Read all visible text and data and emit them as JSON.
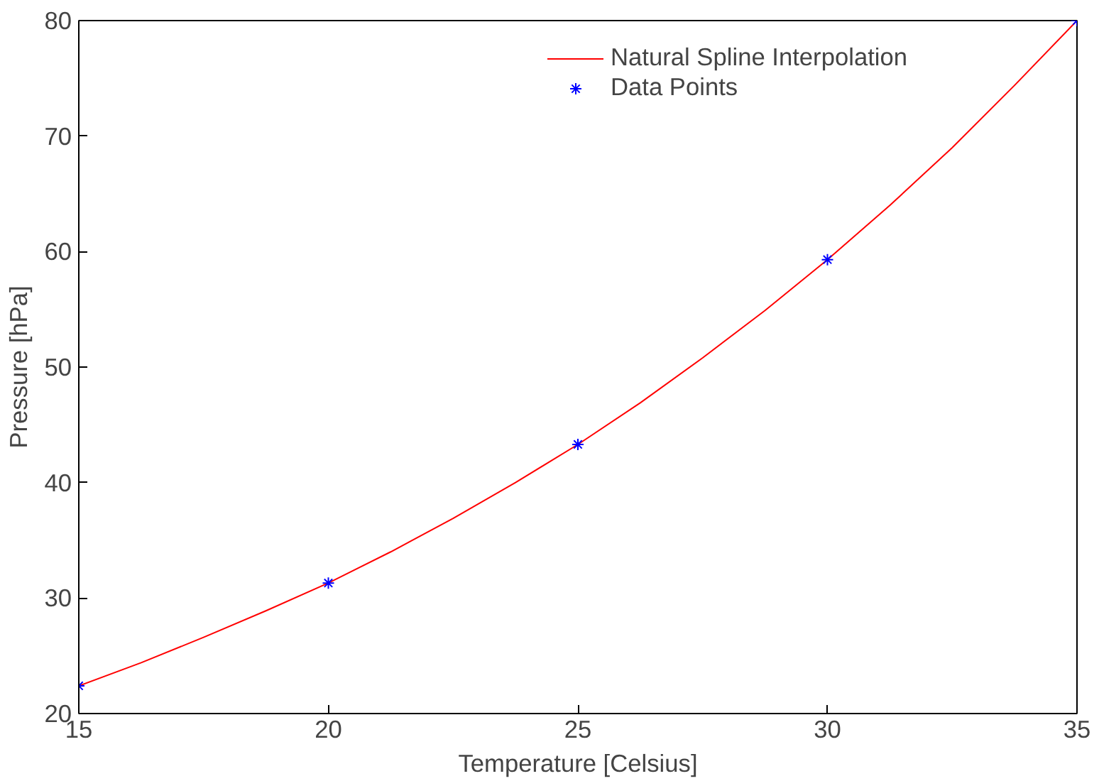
{
  "chart_data": {
    "type": "line",
    "xlabel": "Temperature [Celsius]",
    "ylabel": "Pressure [hPa]",
    "xlim": [
      15,
      35
    ],
    "ylim": [
      20,
      80
    ],
    "xticks": [
      15,
      20,
      25,
      30,
      35
    ],
    "yticks": [
      20,
      30,
      40,
      50,
      60,
      70,
      80
    ],
    "grid": false,
    "legend": "top right",
    "series": [
      {
        "name": "Natural Spline Interpolation",
        "color": "#ff0000",
        "marker": "none",
        "x": [
          15,
          16.25,
          17.5,
          18.75,
          20,
          21.25,
          22.5,
          23.75,
          25,
          26.25,
          27.5,
          28.75,
          30,
          31.25,
          32.5,
          33.75,
          35
        ],
        "values": [
          22.4,
          24.4,
          26.6,
          28.9,
          31.3,
          34.0,
          36.9,
          40.0,
          43.3,
          46.9,
          50.8,
          54.9,
          59.3,
          64.0,
          69.0,
          74.4,
          80.0
        ]
      },
      {
        "name": "Data Points",
        "type": "scatter",
        "color": "#0000ff",
        "marker": "cross",
        "x": [
          15,
          20,
          25,
          30,
          35
        ],
        "values": [
          22.4,
          31.3,
          43.3,
          59.3,
          80.0
        ]
      }
    ]
  }
}
